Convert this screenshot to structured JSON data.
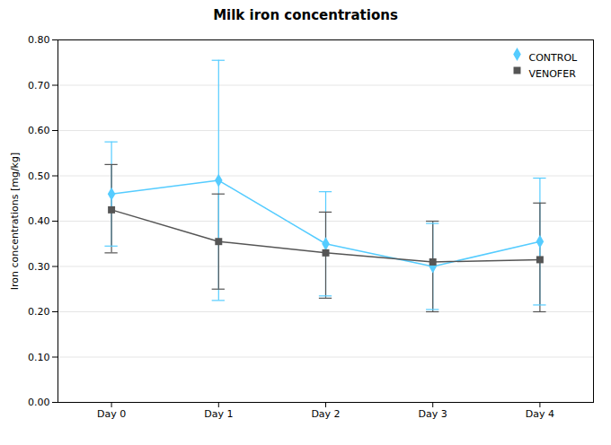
{
  "chart_data": {
    "type": "line",
    "title": "Milk iron concentrations",
    "ylabel": "Iron concentrations [mg/kg]",
    "categories": [
      "Day 0",
      "Day 1",
      "Day 2",
      "Day 3",
      "Day 4"
    ],
    "series": [
      {
        "name": "CONTROL",
        "color": "#55ccff",
        "marker": "diamond",
        "values": [
          0.46,
          0.49,
          0.35,
          0.3,
          0.355
        ],
        "yerr_upper": [
          0.115,
          0.265,
          0.115,
          0.095,
          0.14
        ],
        "yerr_lower": [
          0.115,
          0.265,
          0.115,
          0.095,
          0.14
        ]
      },
      {
        "name": "VENOFER",
        "color": "#555555",
        "marker": "square",
        "values": [
          0.425,
          0.355,
          0.33,
          0.31,
          0.315
        ],
        "yerr_upper": [
          0.1,
          0.105,
          0.09,
          0.09,
          0.125
        ],
        "yerr_lower": [
          0.095,
          0.105,
          0.1,
          0.11,
          0.115
        ]
      }
    ],
    "ylim": [
      0.0,
      0.8
    ],
    "yticks": [
      {
        "value": 0.0,
        "label": "0.00"
      },
      {
        "value": 0.1,
        "label": "0.10"
      },
      {
        "value": 0.2,
        "label": "0.20"
      },
      {
        "value": 0.3,
        "label": "0.30"
      },
      {
        "value": 0.4,
        "label": "0.40"
      },
      {
        "value": 0.5,
        "label": "0.50"
      },
      {
        "value": 0.6,
        "label": "0.60"
      },
      {
        "value": 0.7,
        "label": "0.70"
      },
      {
        "value": 0.8,
        "label": "0.80"
      }
    ],
    "grid": true,
    "legend": "upper right"
  }
}
